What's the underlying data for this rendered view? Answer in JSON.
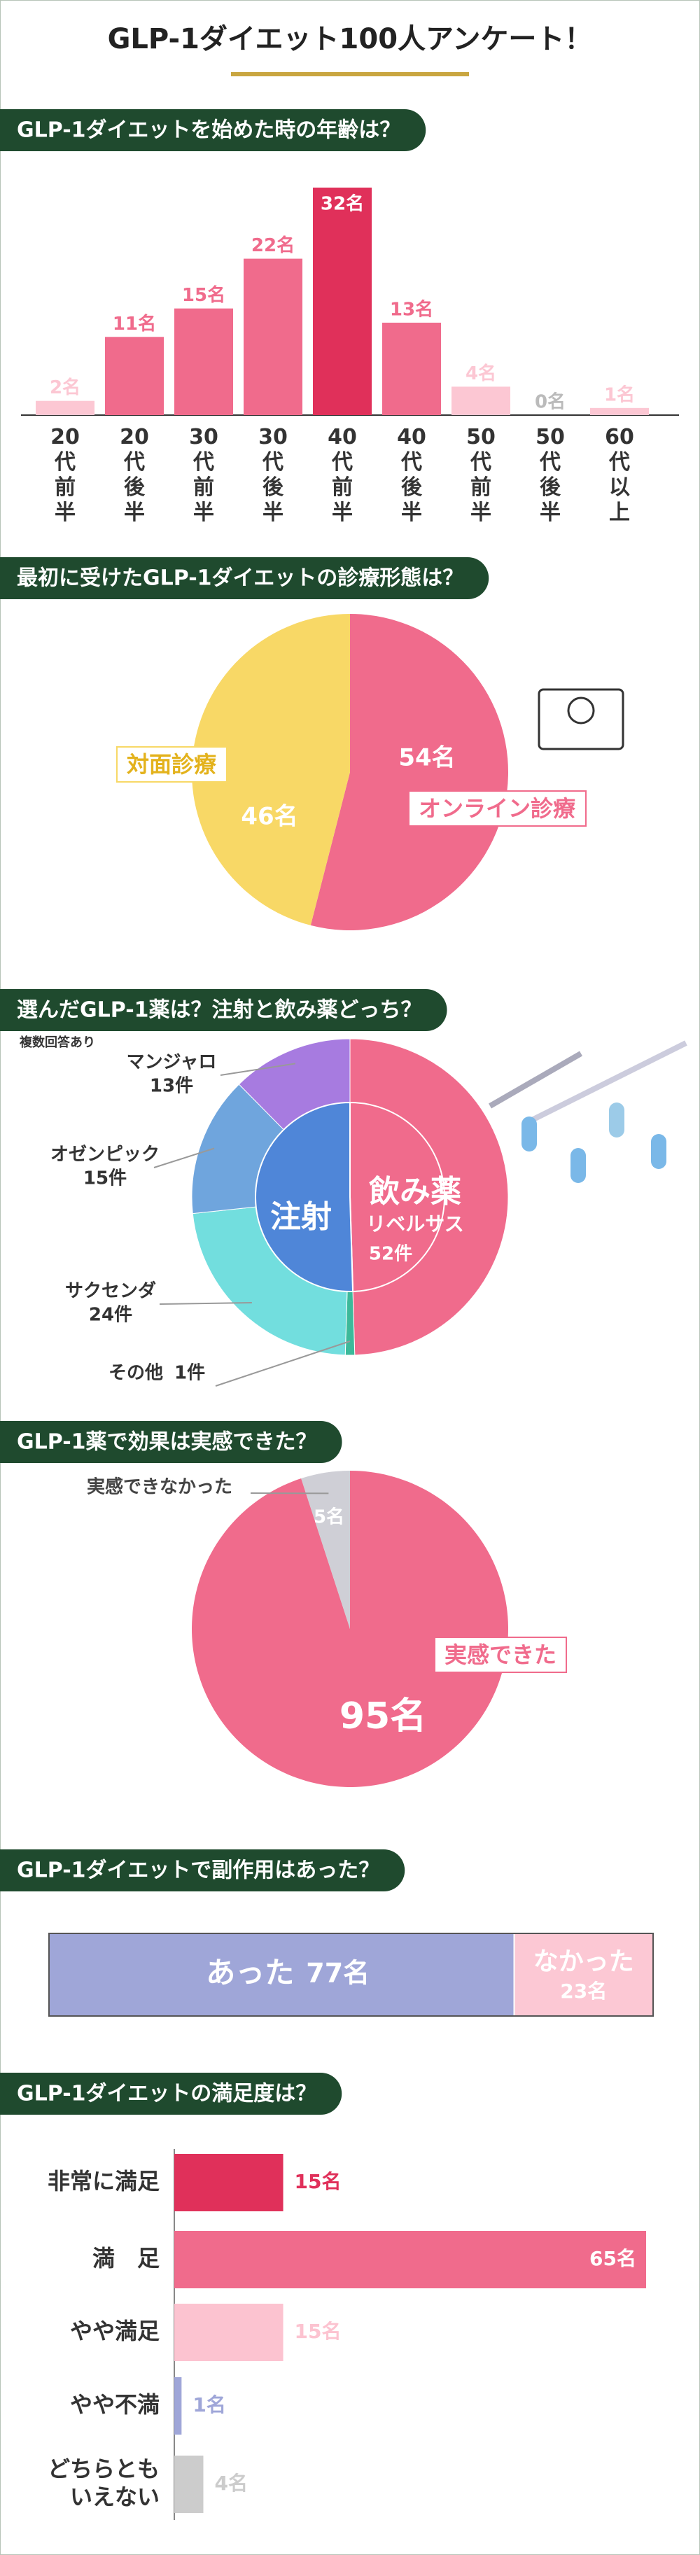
{
  "title": "GLP-1ダイエット100人アンケート！",
  "chart_data": [
    {
      "type": "bar",
      "title": "GLP-1ダイエットを始めた時の年齢は？",
      "categories": [
        "20代前半",
        "20代後半",
        "30代前半",
        "30代後半",
        "40代前半",
        "40代後半",
        "50代前半",
        "50代後半",
        "60代以上"
      ],
      "values": [
        2,
        11,
        15,
        22,
        32,
        13,
        4,
        0,
        1
      ],
      "value_labels": [
        "2名",
        "11名",
        "15名",
        "22名",
        "32名",
        "13名",
        "4名",
        "0名",
        "1名"
      ],
      "colors": [
        "#fcc7d3",
        "#f06b8c",
        "#f06b8c",
        "#f06b8c",
        "#e0305a",
        "#f06b8c",
        "#fcc7d3",
        "#fcc7d3",
        "#fcc7d3"
      ]
    },
    {
      "type": "pie",
      "title": "最初に受けたGLP-1ダイエットの診療形態は？",
      "categories": [
        "オンライン診療",
        "対面診療"
      ],
      "values": [
        54,
        46
      ],
      "value_labels": [
        "54名",
        "46名"
      ],
      "colors": [
        "#f06b8c",
        "#f8d866"
      ]
    },
    {
      "type": "donut",
      "title": "選んだGLP-1薬は？注射と飲み薬どっち？",
      "note": "複数回答あり",
      "categories": [
        "リベルサス",
        "その他",
        "サクセンダ",
        "オゼンピック",
        "マンジャロ"
      ],
      "values": [
        52,
        1,
        24,
        15,
        13
      ],
      "value_labels": [
        "52件",
        "1件",
        "24件",
        "15件",
        "13件"
      ],
      "colors": [
        "#f06b8c",
        "#3cb99a",
        "#72dede",
        "#6fa5dd",
        "#a77be0"
      ],
      "groups": [
        "飲み薬",
        "注射"
      ],
      "group_of": [
        0,
        1,
        1,
        1,
        1
      ],
      "group_colors": [
        "#f06b8c",
        "#4f86d8"
      ]
    },
    {
      "type": "pie",
      "title": "GLP-1薬で効果は実感できた？",
      "categories": [
        "実感できた",
        "実感できなかった"
      ],
      "values": [
        95,
        5
      ],
      "value_labels": [
        "95名",
        "5名"
      ],
      "colors": [
        "#f06b8c",
        "#cfcfd6"
      ]
    },
    {
      "type": "stacked_bar",
      "title": "GLP-1ダイエットで副作用はあった？",
      "categories": [
        "あった",
        "なかった"
      ],
      "values": [
        77,
        23
      ],
      "value_labels": [
        "77名",
        "23名"
      ],
      "colors": [
        "#9fa6d8",
        "#fcc8d4"
      ]
    },
    {
      "type": "hbar",
      "title": "GLP-1ダイエットの満足度は？",
      "categories": [
        "非常に満足",
        "満　足",
        "やや満足",
        "やや不満",
        "どちらとも\nいえない"
      ],
      "values": [
        15,
        65,
        15,
        1,
        4
      ],
      "value_labels": [
        "15名",
        "65名",
        "15名",
        "1名",
        "4名"
      ],
      "colors": [
        "#e0305a",
        "#f06b8c",
        "#fcc3d0",
        "#9fa6d8",
        "#cccccc"
      ]
    }
  ]
}
